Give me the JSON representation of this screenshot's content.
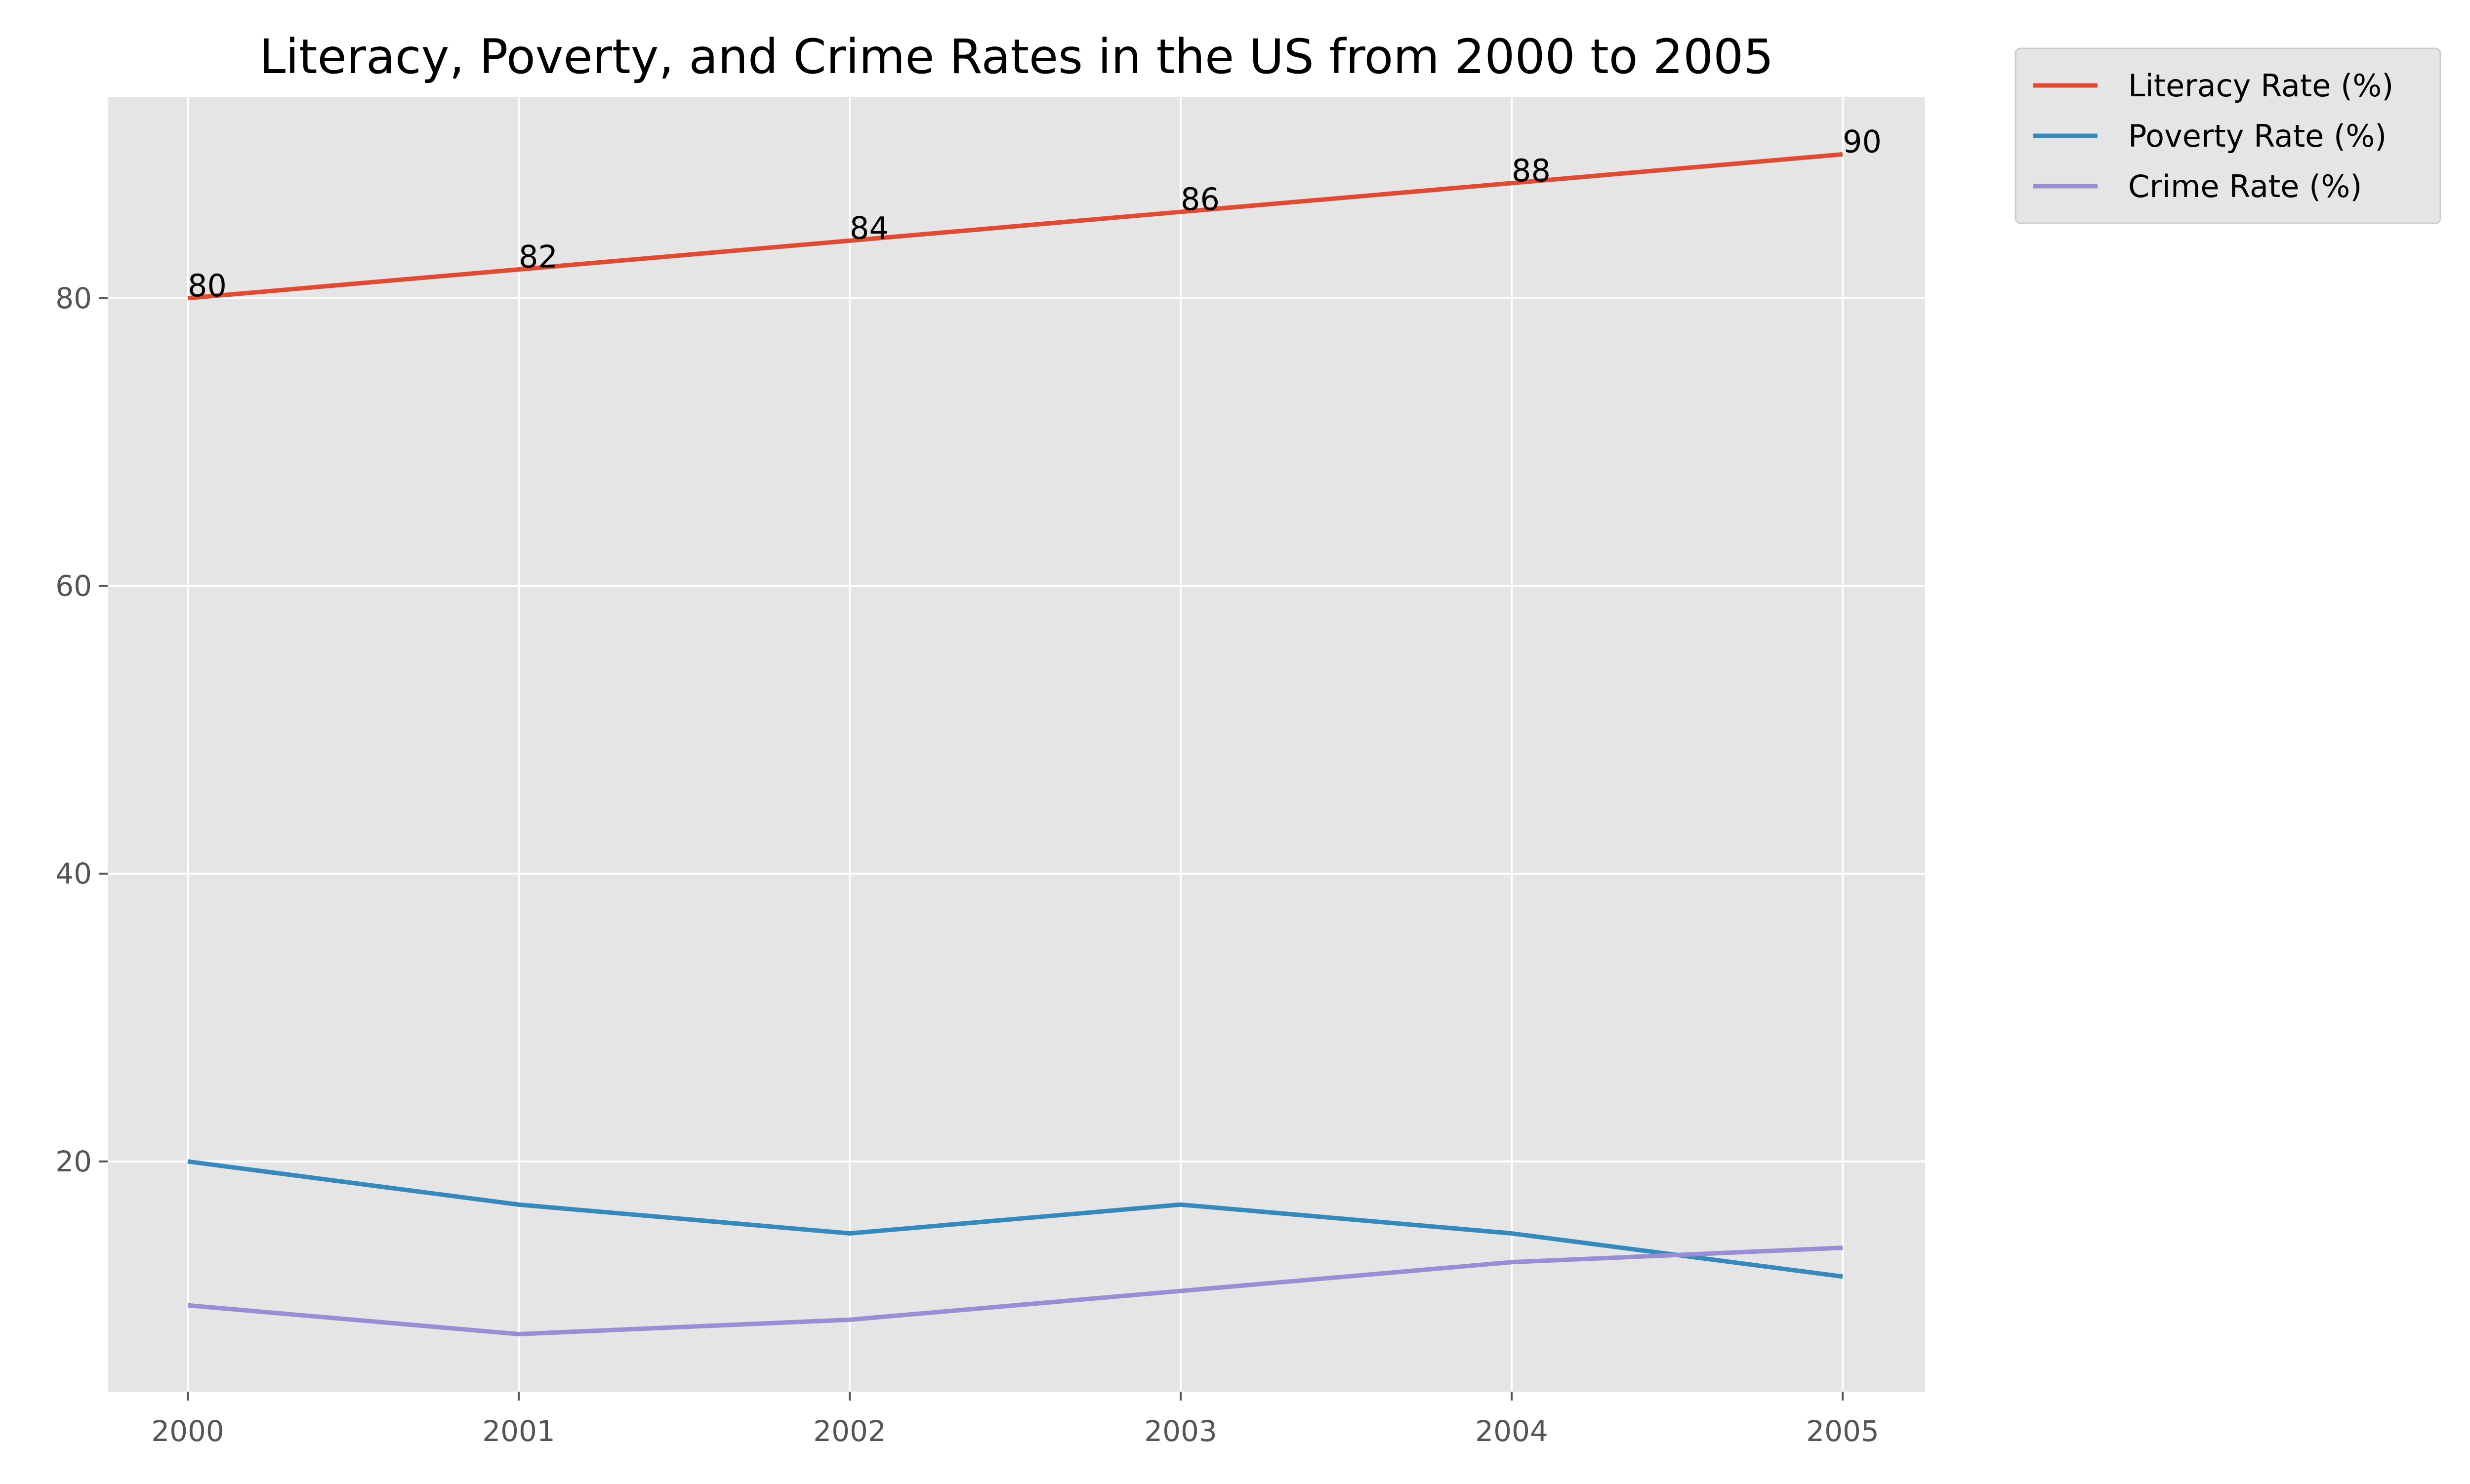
{
  "chart_data": {
    "type": "line",
    "title": "Literacy, Poverty, and Crime Rates in the US from 2000 to 2005",
    "xlabel": "",
    "ylabel": "",
    "categories": [
      "2000",
      "2001",
      "2002",
      "2003",
      "2004",
      "2005"
    ],
    "series": [
      {
        "name": "Literacy Rate (%)",
        "color": "#E24A33",
        "values": [
          80,
          82,
          84,
          86,
          88,
          90
        ],
        "show_labels": true
      },
      {
        "name": "Poverty Rate (%)",
        "color": "#348ABD",
        "values": [
          20,
          17,
          15,
          17,
          15,
          12
        ],
        "show_labels": false
      },
      {
        "name": "Crime Rate (%)",
        "color": "#988ED5",
        "values": [
          10,
          8,
          9,
          11,
          13,
          14
        ],
        "show_labels": false
      }
    ],
    "ylim": [
      4,
      94
    ],
    "yticks": [
      20,
      40,
      60,
      80
    ],
    "grid": true,
    "legend": "outside-top-right",
    "background": "#E5E5E5",
    "grid_color": "#FFFFFF"
  }
}
